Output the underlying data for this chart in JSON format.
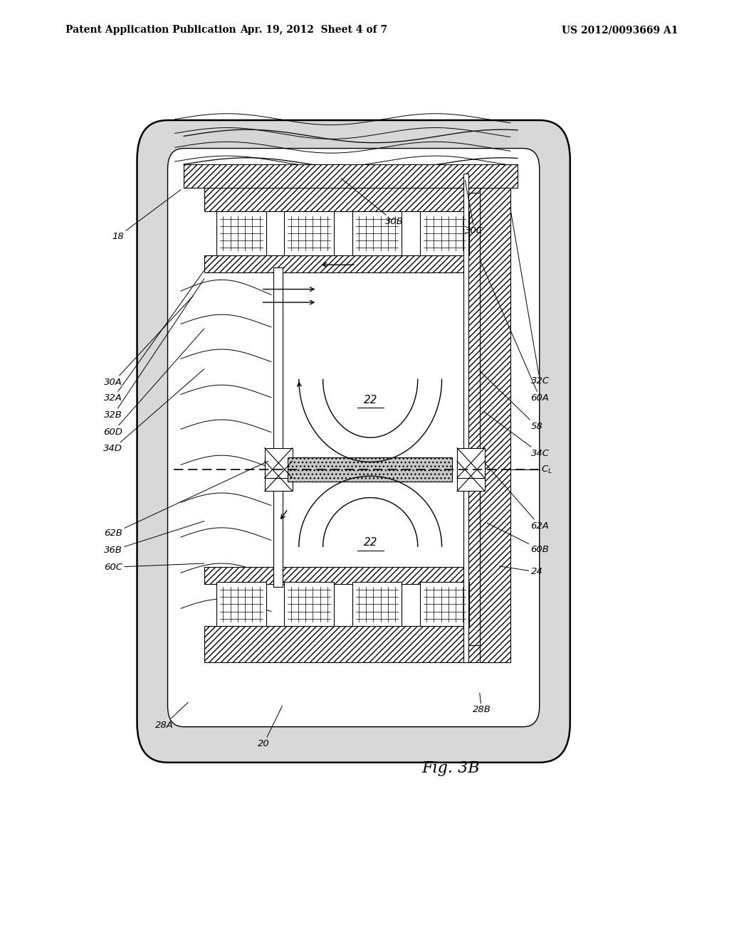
{
  "bg_color": "#ffffff",
  "header_left": "Patent Application Publication",
  "header_mid": "Apr. 19, 2012  Sheet 4 of 7",
  "header_right": "US 2012/0093669 A1",
  "fig_label": "Fig. 3B",
  "title_fontsize": 11,
  "label_fontsize": 9.5,
  "fig_label_fontsize": 16
}
